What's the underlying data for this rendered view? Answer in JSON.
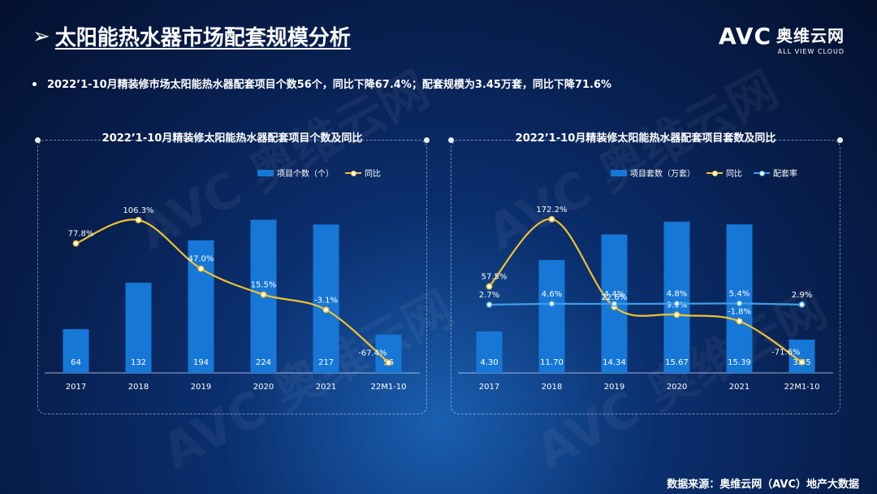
{
  "header": {
    "title": "太阳能热水器市场配套规模分析",
    "logo_main": "AVC",
    "logo_cn": "奥维云网",
    "logo_sub": "ALL VIEW CLOUD"
  },
  "summary": "2022’1-10月精装修市场太阳能热水器配套项目个数56个，同比下降67.4%；配套规模为3.45万套，同比下降71.6%",
  "footer": {
    "source": "数据来源：奥维云网（AVC）地产大数据"
  },
  "colors": {
    "bar": "#1677d6",
    "yoy_line": "#f2c12e",
    "rate_line": "#3ea0e8",
    "bg": "#071d4a"
  },
  "chart_data": [
    {
      "type": "bar",
      "title": "2022’1-10月精装修太阳能热水器配套项目个数及同比",
      "categories": [
        "2017",
        "2018",
        "2019",
        "2020",
        "2021",
        "22M1-10"
      ],
      "series": [
        {
          "name": "项目个数（个）",
          "type": "bar",
          "values": [
            64,
            132,
            194,
            224,
            217,
            56
          ],
          "labels": [
            "64",
            "132",
            "194",
            "224",
            "217",
            "56"
          ]
        },
        {
          "name": "同比",
          "type": "line",
          "values": [
            77.8,
            106.3,
            47.0,
            15.5,
            -3.1,
            -67.4
          ],
          "labels": [
            "77.8%",
            "106.3%",
            "47.0%",
            "15.5%",
            "-3.1%",
            "-67.4%"
          ]
        }
      ],
      "bar_ylim": [
        0,
        240
      ],
      "line_ylim": [
        -80,
        120
      ],
      "grid": false,
      "legend_position": "top-right"
    },
    {
      "type": "bar",
      "title": "2022’1-10月精装修太阳能热水器配套项目套数及同比",
      "categories": [
        "2017",
        "2018",
        "2019",
        "2020",
        "2021",
        "22M1-10"
      ],
      "series": [
        {
          "name": "项目套数（万套）",
          "type": "bar",
          "values": [
            4.3,
            11.7,
            14.34,
            15.67,
            15.39,
            3.45
          ],
          "labels": [
            "4.30",
            "11.70",
            "14.34",
            "15.67",
            "15.39",
            "3.45"
          ]
        },
        {
          "name": "同比",
          "type": "line",
          "values": [
            57.5,
            172.2,
            22.6,
            9.3,
            -1.8,
            -71.6
          ],
          "labels": [
            "57.5%",
            "172.2%",
            "22.6%",
            "9.3%",
            "-1.8%",
            "-71.6%"
          ]
        },
        {
          "name": "配套率",
          "type": "line",
          "values": [
            2.7,
            4.6,
            4.4,
            4.8,
            5.4,
            2.9
          ],
          "labels": [
            "2.7%",
            "4.6%",
            "4.4%",
            "4.8%",
            "5.4%",
            "2.9%"
          ]
        }
      ],
      "bar_ylim": [
        0,
        17
      ],
      "line_ylim": [
        -90,
        190
      ],
      "grid": false,
      "legend_position": "top-right"
    }
  ]
}
